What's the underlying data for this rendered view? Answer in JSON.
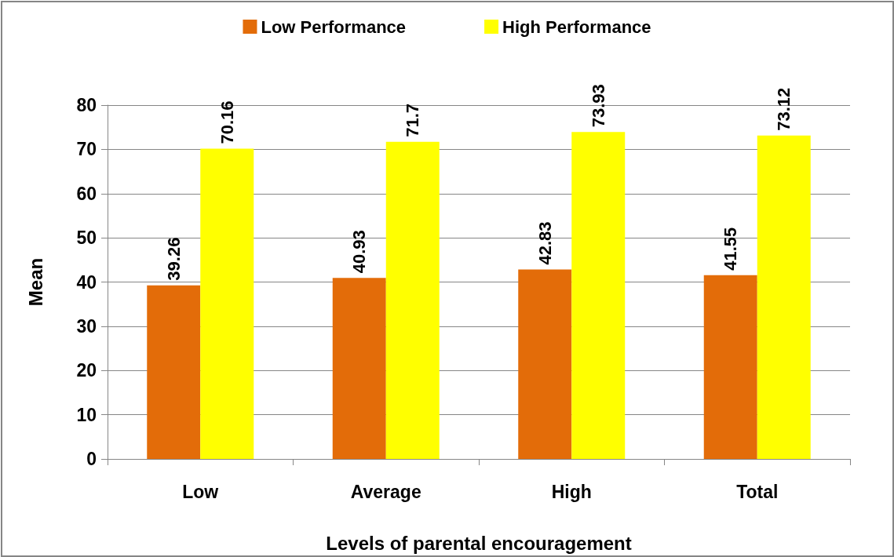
{
  "chart_data": {
    "type": "bar",
    "xlabel": "Levels of parental encouragement",
    "ylabel": "Mean",
    "categories": [
      "Low",
      "Average",
      "High",
      "Total"
    ],
    "series": [
      {
        "name": "Low Performance",
        "color": "#e36c09",
        "values": [
          39.26,
          40.93,
          42.83,
          41.55
        ]
      },
      {
        "name": "High Performance",
        "color": "#ffff00",
        "values": [
          70.16,
          71.7,
          73.93,
          73.12
        ]
      }
    ],
    "ylim": [
      0,
      80
    ],
    "yticks": [
      0,
      10,
      20,
      30,
      40,
      50,
      60,
      70,
      80
    ],
    "grid": "y",
    "legend": "top",
    "data_labels": true
  }
}
